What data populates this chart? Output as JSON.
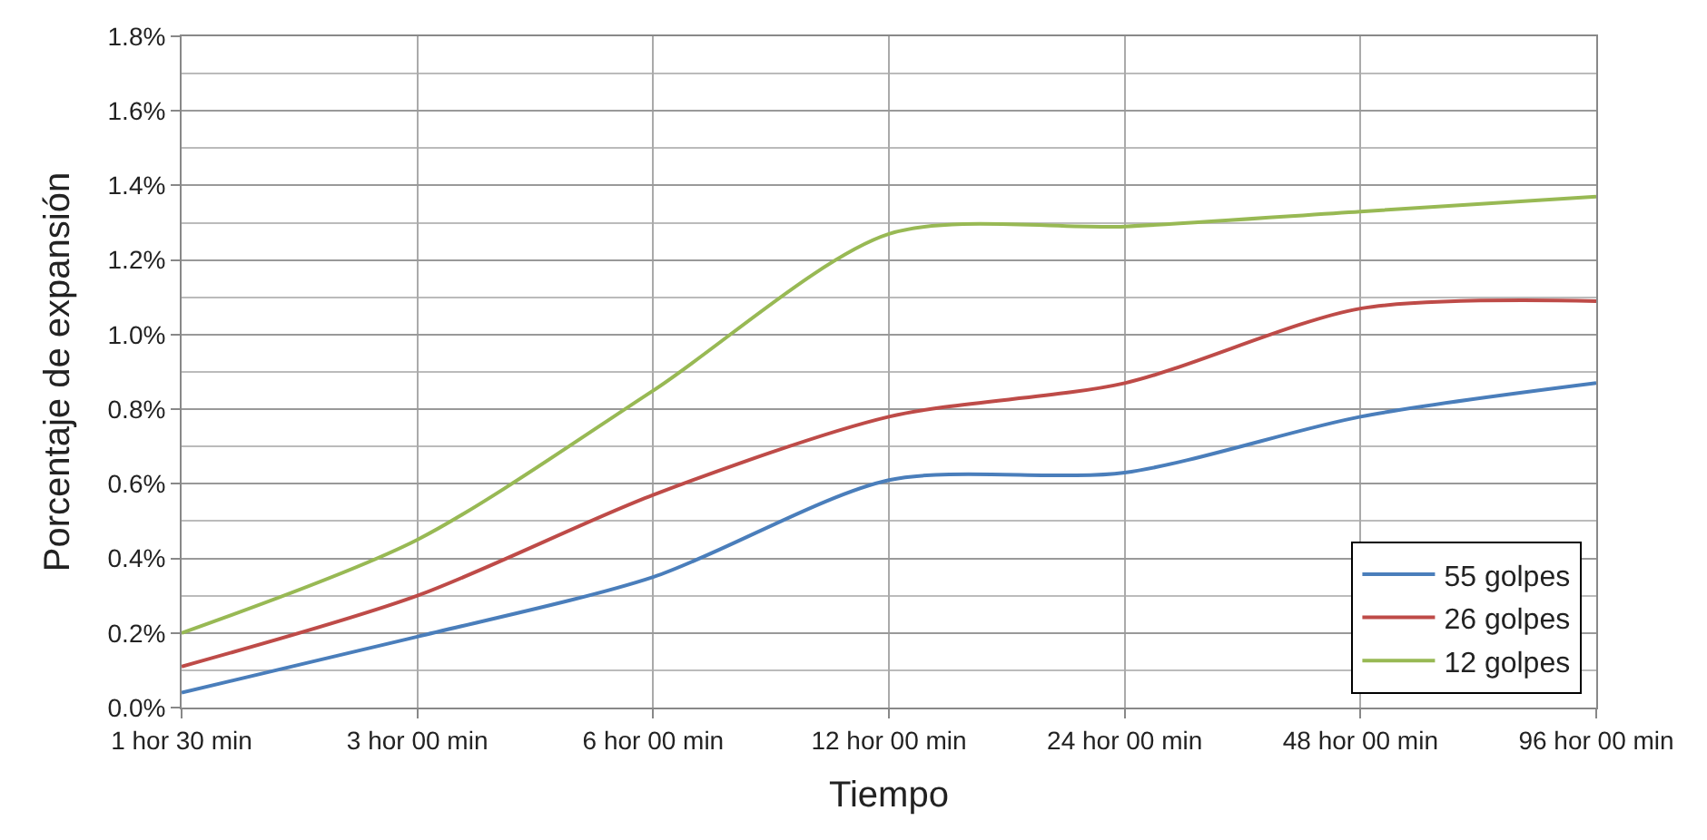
{
  "chart_data": {
    "type": "line",
    "xlabel": "Tiempo",
    "ylabel": "Porcentaje de expansión",
    "categories": [
      "1 hor 30 min",
      "3 hor 00 min",
      "6 hor 00 min",
      "12 hor 00 min",
      "24 hor 00 min",
      "48 hor 00 min",
      "96 hor 00 min"
    ],
    "series": [
      {
        "name": "55 golpes",
        "color": "#4a7ebb",
        "values": [
          0.04,
          0.19,
          0.35,
          0.61,
          0.63,
          0.78,
          0.87
        ]
      },
      {
        "name": "26 golpes",
        "color": "#be4b48",
        "values": [
          0.11,
          0.3,
          0.57,
          0.78,
          0.87,
          1.07,
          1.09
        ]
      },
      {
        "name": "12 golpes",
        "color": "#98b954",
        "values": [
          0.2,
          0.45,
          0.85,
          1.27,
          1.29,
          1.33,
          1.37
        ]
      }
    ],
    "ylim": [
      0,
      1.8
    ],
    "yticks": [
      {
        "value": 0,
        "label": "0.0%"
      },
      {
        "value": 0.2,
        "label": "0.2%"
      },
      {
        "value": 0.4,
        "label": "0.4%"
      },
      {
        "value": 0.6,
        "label": "0.6%"
      },
      {
        "value": 0.8,
        "label": "0.8%"
      },
      {
        "value": 1.0,
        "label": "1.0%"
      },
      {
        "value": 1.2,
        "label": "1.2%"
      },
      {
        "value": 1.4,
        "label": "1.4%"
      },
      {
        "value": 1.6,
        "label": "1.6%"
      },
      {
        "value": 1.8,
        "label": "1.8%"
      }
    ],
    "grid": true,
    "legend": "bottom right",
    "marker": "none",
    "line_style": "solid"
  }
}
